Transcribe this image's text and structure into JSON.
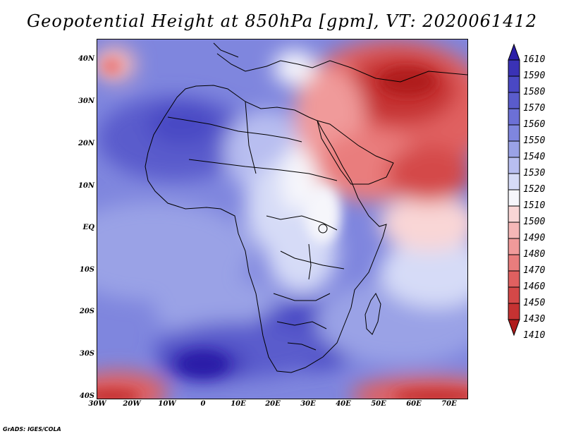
{
  "title": "Geopotential Height at 850hPa [gpm], VT: 2020061412",
  "credit": "GrADS: IGES/COLA",
  "map": {
    "lat_labels": [
      "40N",
      "30N",
      "20N",
      "10N",
      "EQ",
      "10S",
      "20S",
      "30S",
      "40S"
    ],
    "lon_labels": [
      "30W",
      "20W",
      "10W",
      "0",
      "10E",
      "20E",
      "30E",
      "40E",
      "50E",
      "60E",
      "70E"
    ]
  },
  "colorbar": {
    "levels": [
      "1610",
      "1590",
      "1580",
      "1570",
      "1560",
      "1550",
      "1540",
      "1530",
      "1520",
      "1510",
      "1500",
      "1490",
      "1480",
      "1470",
      "1460",
      "1450",
      "1430",
      "1410"
    ],
    "colors": [
      "#2b1ea8",
      "#3a32b6",
      "#4a48c4",
      "#5a5ccc",
      "#6c70d6",
      "#7f86de",
      "#9aa2e6",
      "#b8bef0",
      "#d6dbf7",
      "#f6f6fb",
      "#f9d6d6",
      "#f5b7b7",
      "#f09a9a",
      "#e97d7d",
      "#e06060",
      "#d44848",
      "#c53232",
      "#b01c1c"
    ]
  }
}
